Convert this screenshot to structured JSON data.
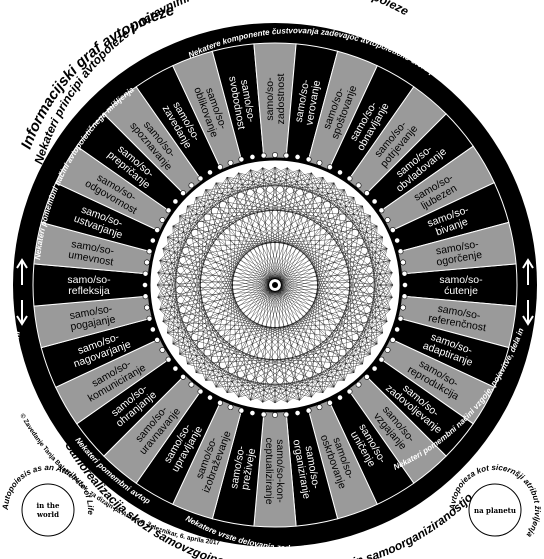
{
  "title": "Informacijski graf avtopoieze",
  "subtitle": "Nekateri principi avtopoieze z naravnimi elementi krožnih aktivnosti avtopoieze",
  "ring": {
    "top": "Nekatere komponente čustvovanja zadevajoč avtopoietično sfero poimenosti v živem",
    "left": "Nekateri pomembni načini avtopoietičnega mišljenja",
    "left_lower": "Nekateri pomembni načini avtopoietičnega mišljenja",
    "bottom_left": "Nekateri pomembni avtopoietičnega diskurza",
    "right_lower": "Nekateri pomembni načini vzgoje, pojavitve, dela in produkcije",
    "bottom": "Nekatere vrste delovanja zadevajoč avtopoietični način samoorganiziranosti"
  },
  "bottom_caption": "Samorealizacija skozi samovzgojnostjo, samokulturnostjo in samoorganiziranostjo",
  "credit": "© Zavedanje Tanja Balažic Peček, za dizajn pa Anton P. Železnikar, 6. aprila 2017",
  "badges": {
    "left": {
      "outer": "Autopoiesis as an Attribute of Life",
      "inner": [
        "in the",
        "world"
      ]
    },
    "right": {
      "outer": "Avtopoieza kot sicernšji atribut življenja",
      "inner": [
        "na planetu"
      ]
    }
  },
  "segments": [
    {
      "lines": [
        "samo/so-",
        "ćutenje"
      ]
    },
    {
      "lines": [
        "samo/so-",
        "referenčnost"
      ]
    },
    {
      "lines": [
        "samo/so-",
        "adaptiranje"
      ]
    },
    {
      "lines": [
        "samo/so-",
        "reprodukcija"
      ]
    },
    {
      "lines": [
        "samo/so-",
        "zadovoljevanje"
      ]
    },
    {
      "lines": [
        "samo/so-",
        "vzgajanje"
      ]
    },
    {
      "lines": [
        "samo/so-",
        "uničenje"
      ]
    },
    {
      "lines": [
        "samo/so-",
        "oskrbovanje"
      ]
    },
    {
      "lines": [
        "samo/so-",
        "organiziranje"
      ]
    },
    {
      "lines": [
        "samo/so-kon-",
        "ceptualiziranje"
      ]
    },
    {
      "lines": [
        "samo/so-",
        "preživeje"
      ]
    },
    {
      "lines": [
        "samo/so-",
        "izobraževanje"
      ]
    },
    {
      "lines": [
        "samo/so-",
        "upravljanje"
      ]
    },
    {
      "lines": [
        "samo/so-",
        "uravnavanje"
      ]
    },
    {
      "lines": [
        "samo/so-",
        "ohranjanje"
      ]
    },
    {
      "lines": [
        "samo/so-",
        "komuniciranje"
      ]
    },
    {
      "lines": [
        "samo/so-",
        "nagovarjanje"
      ]
    },
    {
      "lines": [
        "samo/so-",
        "pogajanje"
      ]
    },
    {
      "lines": [
        "samo/so-",
        "refleksija"
      ]
    },
    {
      "lines": [
        "samo/so-",
        "umevnost"
      ]
    },
    {
      "lines": [
        "samo/so-",
        "ustvarjanje"
      ]
    },
    {
      "lines": [
        "samo/so-",
        "odgovornost"
      ]
    },
    {
      "lines": [
        "samo/so-",
        "prepričanje"
      ]
    },
    {
      "lines": [
        "samo/so-",
        "spoznavanje"
      ]
    },
    {
      "lines": [
        "samo/so-",
        "zavedanje"
      ]
    },
    {
      "lines": [
        "samo/so-",
        "oblikovanje"
      ]
    },
    {
      "lines": [
        "samo/so-",
        "svobodnost"
      ]
    },
    {
      "lines": [
        "samo/so-",
        "zadostnost"
      ]
    },
    {
      "lines": [
        "samo/so-",
        "verovanje"
      ]
    },
    {
      "lines": [
        "samo/so-",
        "spoštovanje"
      ]
    },
    {
      "lines": [
        "samo/so-",
        "obnavljanje"
      ]
    },
    {
      "lines": [
        "samo/so-",
        "potrjevanje"
      ]
    },
    {
      "lines": [
        "samo/so-",
        "obvladovanje"
      ]
    },
    {
      "lines": [
        "samo/so-",
        "ljubezen"
      ]
    },
    {
      "lines": [
        "samo/so-",
        "bivanje"
      ]
    },
    {
      "lines": [
        "samo/so-",
        "ogorčenje"
      ]
    }
  ]
}
